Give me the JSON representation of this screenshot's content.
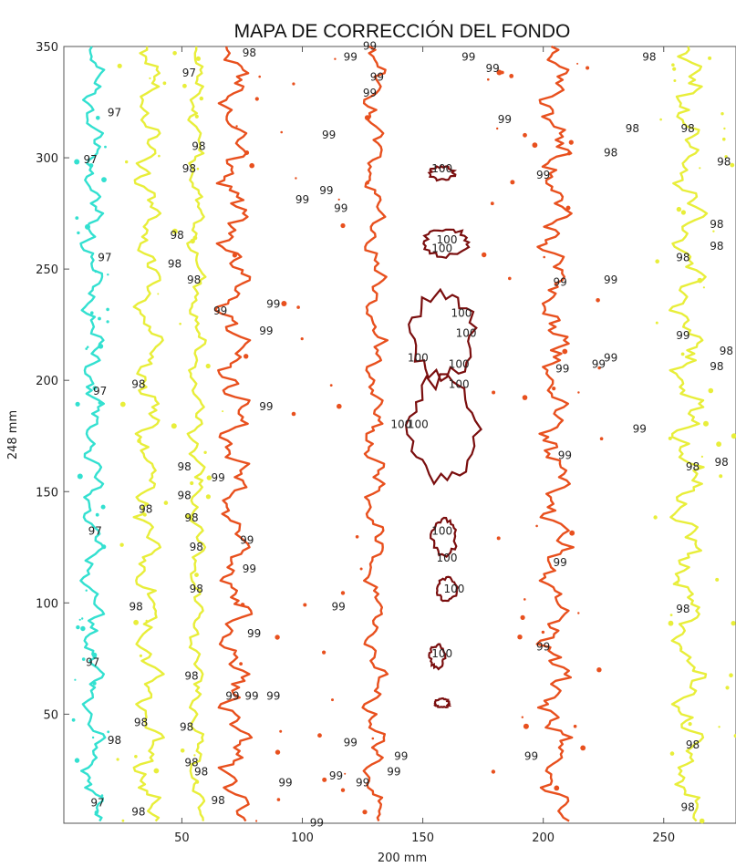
{
  "chart_data": {
    "type": "contour",
    "title": "MAPA DE CORRECCIÓN DEL FONDO",
    "xlabel": "200 mm",
    "ylabel": "248 mm",
    "xlim": [
      1,
      280
    ],
    "ylim": [
      1,
      350
    ],
    "x_ticks": [
      50,
      100,
      150,
      200,
      250
    ],
    "y_ticks": [
      50,
      100,
      150,
      200,
      250,
      300,
      350
    ],
    "grid": false,
    "legend": "none",
    "levels": [
      {
        "name": "97",
        "color": "#33e0d0"
      },
      {
        "name": "98",
        "color": "#e8ee3a"
      },
      {
        "name": "99",
        "color": "#e8501e"
      },
      {
        "name": "100",
        "color": "#7a0e0e"
      }
    ],
    "contour_labels": [
      {
        "text": "97",
        "x": 22,
        "y": 320
      },
      {
        "text": "97",
        "x": 53,
        "y": 338
      },
      {
        "text": "97",
        "x": 12,
        "y": 299
      },
      {
        "text": "97",
        "x": 18,
        "y": 255
      },
      {
        "text": "97",
        "x": 16,
        "y": 195
      },
      {
        "text": "97",
        "x": 14,
        "y": 132
      },
      {
        "text": "97",
        "x": 13,
        "y": 73
      },
      {
        "text": "97",
        "x": 15,
        "y": 10
      },
      {
        "text": "98",
        "x": 78,
        "y": 347
      },
      {
        "text": "98",
        "x": 57,
        "y": 305
      },
      {
        "text": "98",
        "x": 53,
        "y": 295
      },
      {
        "text": "98",
        "x": 48,
        "y": 265
      },
      {
        "text": "98",
        "x": 47,
        "y": 252
      },
      {
        "text": "98",
        "x": 55,
        "y": 245
      },
      {
        "text": "98",
        "x": 32,
        "y": 198
      },
      {
        "text": "98",
        "x": 51,
        "y": 161
      },
      {
        "text": "98",
        "x": 51,
        "y": 148
      },
      {
        "text": "98",
        "x": 35,
        "y": 142
      },
      {
        "text": "98",
        "x": 54,
        "y": 138
      },
      {
        "text": "98",
        "x": 56,
        "y": 125
      },
      {
        "text": "98",
        "x": 56,
        "y": 106
      },
      {
        "text": "98",
        "x": 31,
        "y": 98
      },
      {
        "text": "98",
        "x": 54,
        "y": 67
      },
      {
        "text": "98",
        "x": 33,
        "y": 46
      },
      {
        "text": "98",
        "x": 52,
        "y": 44
      },
      {
        "text": "98",
        "x": 22,
        "y": 38
      },
      {
        "text": "98",
        "x": 54,
        "y": 28
      },
      {
        "text": "98",
        "x": 58,
        "y": 24
      },
      {
        "text": "98",
        "x": 65,
        "y": 11
      },
      {
        "text": "98",
        "x": 32,
        "y": 6
      },
      {
        "text": "98",
        "x": 244,
        "y": 345
      },
      {
        "text": "98",
        "x": 237,
        "y": 313
      },
      {
        "text": "98",
        "x": 260,
        "y": 313
      },
      {
        "text": "98",
        "x": 228,
        "y": 302
      },
      {
        "text": "98",
        "x": 275,
        "y": 298
      },
      {
        "text": "98",
        "x": 272,
        "y": 270
      },
      {
        "text": "98",
        "x": 272,
        "y": 260
      },
      {
        "text": "98",
        "x": 258,
        "y": 255
      },
      {
        "text": "98",
        "x": 276,
        "y": 213
      },
      {
        "text": "98",
        "x": 272,
        "y": 206
      },
      {
        "text": "98",
        "x": 274,
        "y": 163
      },
      {
        "text": "98",
        "x": 262,
        "y": 161
      },
      {
        "text": "98",
        "x": 258,
        "y": 97
      },
      {
        "text": "98",
        "x": 262,
        "y": 36
      },
      {
        "text": "98",
        "x": 260,
        "y": 8
      },
      {
        "text": "99",
        "x": 128,
        "y": 350
      },
      {
        "text": "99",
        "x": 120,
        "y": 345
      },
      {
        "text": "99",
        "x": 131,
        "y": 336
      },
      {
        "text": "99",
        "x": 128,
        "y": 329
      },
      {
        "text": "99",
        "x": 169,
        "y": 345
      },
      {
        "text": "99",
        "x": 179,
        "y": 340
      },
      {
        "text": "99",
        "x": 184,
        "y": 317
      },
      {
        "text": "99",
        "x": 111,
        "y": 310
      },
      {
        "text": "99",
        "x": 200,
        "y": 292
      },
      {
        "text": "99",
        "x": 110,
        "y": 285
      },
      {
        "text": "99",
        "x": 100,
        "y": 281
      },
      {
        "text": "99",
        "x": 116,
        "y": 277
      },
      {
        "text": "99",
        "x": 88,
        "y": 234
      },
      {
        "text": "99",
        "x": 66,
        "y": 231
      },
      {
        "text": "99",
        "x": 85,
        "y": 222
      },
      {
        "text": "99",
        "x": 207,
        "y": 244
      },
      {
        "text": "99",
        "x": 228,
        "y": 245
      },
      {
        "text": "99",
        "x": 258,
        "y": 220
      },
      {
        "text": "99",
        "x": 228,
        "y": 210
      },
      {
        "text": "99",
        "x": 223,
        "y": 207
      },
      {
        "text": "99",
        "x": 208,
        "y": 205
      },
      {
        "text": "99",
        "x": 85,
        "y": 188
      },
      {
        "text": "99",
        "x": 240,
        "y": 178
      },
      {
        "text": "99",
        "x": 209,
        "y": 166
      },
      {
        "text": "99",
        "x": 65,
        "y": 156
      },
      {
        "text": "99",
        "x": 77,
        "y": 128
      },
      {
        "text": "99",
        "x": 78,
        "y": 115
      },
      {
        "text": "99",
        "x": 207,
        "y": 118
      },
      {
        "text": "99",
        "x": 115,
        "y": 98
      },
      {
        "text": "99",
        "x": 80,
        "y": 86
      },
      {
        "text": "99",
        "x": 200,
        "y": 80
      },
      {
        "text": "99",
        "x": 71,
        "y": 58
      },
      {
        "text": "99",
        "x": 79,
        "y": 58
      },
      {
        "text": "99",
        "x": 88,
        "y": 58
      },
      {
        "text": "99",
        "x": 120,
        "y": 37
      },
      {
        "text": "99",
        "x": 195,
        "y": 31
      },
      {
        "text": "99",
        "x": 125,
        "y": 19
      },
      {
        "text": "99",
        "x": 138,
        "y": 24
      },
      {
        "text": "99",
        "x": 141,
        "y": 31
      },
      {
        "text": "99",
        "x": 93,
        "y": 19
      },
      {
        "text": "99",
        "x": 114,
        "y": 22
      },
      {
        "text": "99",
        "x": 106,
        "y": 1
      },
      {
        "text": "100",
        "x": 158,
        "y": 295
      },
      {
        "text": "100",
        "x": 160,
        "y": 263
      },
      {
        "text": "100",
        "x": 158,
        "y": 259
      },
      {
        "text": "100",
        "x": 166,
        "y": 230
      },
      {
        "text": "100",
        "x": 168,
        "y": 221
      },
      {
        "text": "100",
        "x": 148,
        "y": 210
      },
      {
        "text": "100",
        "x": 165,
        "y": 207
      },
      {
        "text": "100",
        "x": 165,
        "y": 198
      },
      {
        "text": "100",
        "x": 141,
        "y": 180
      },
      {
        "text": "100",
        "x": 148,
        "y": 180
      },
      {
        "text": "100",
        "x": 158,
        "y": 132
      },
      {
        "text": "100",
        "x": 160,
        "y": 120
      },
      {
        "text": "100",
        "x": 163,
        "y": 106
      },
      {
        "text": "100",
        "x": 158,
        "y": 77
      }
    ]
  }
}
